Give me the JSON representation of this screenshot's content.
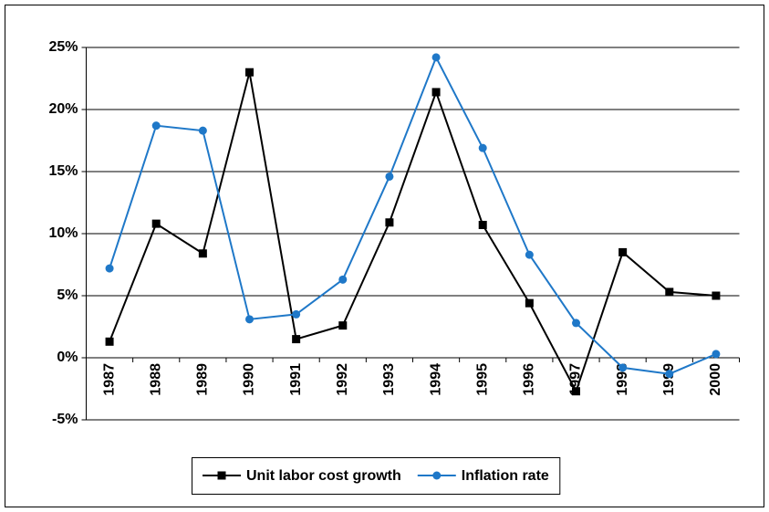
{
  "chart_data": {
    "type": "line",
    "categories": [
      "1987",
      "1988",
      "1989",
      "1990",
      "1991",
      "1992",
      "1993",
      "1994",
      "1995",
      "1996",
      "1997",
      "1998",
      "1999",
      "2000"
    ],
    "series": [
      {
        "name": "Unit labor cost growth",
        "color": "#000000",
        "marker": "square",
        "values": [
          1.3,
          10.8,
          8.4,
          23.0,
          1.5,
          2.6,
          10.9,
          21.4,
          10.7,
          4.4,
          -2.7,
          8.5,
          5.3,
          5.0
        ]
      },
      {
        "name": "Inflation rate",
        "color": "#1f78c8",
        "marker": "circle",
        "values": [
          7.2,
          18.7,
          18.3,
          3.1,
          3.5,
          6.3,
          14.6,
          24.2,
          16.9,
          8.3,
          2.8,
          -0.8,
          -1.3,
          0.3
        ]
      }
    ],
    "ylim": [
      -5,
      25
    ],
    "yticks": [
      {
        "value": -5,
        "label": "-5%"
      },
      {
        "value": 0,
        "label": "0%"
      },
      {
        "value": 5,
        "label": "5%"
      },
      {
        "value": 10,
        "label": "10%"
      },
      {
        "value": 15,
        "label": "15%"
      },
      {
        "value": 20,
        "label": "20%"
      },
      {
        "value": 25,
        "label": "25%"
      }
    ],
    "grid": true,
    "legend": "bottom"
  }
}
